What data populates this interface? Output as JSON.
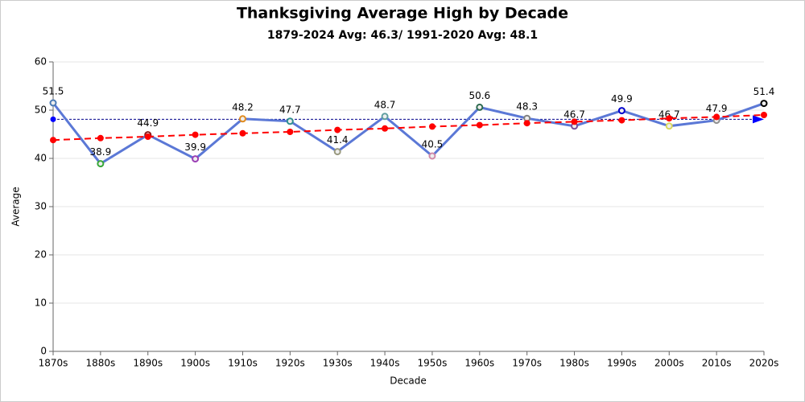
{
  "chart_data": {
    "type": "line",
    "title": "Thanksgiving Average High by Decade",
    "subtitle": "1879-2024 Avg: 46.3/ 1991-2020 Avg: 48.1",
    "x_label": "Decade",
    "y_label": "Average",
    "categories": [
      "1870s",
      "1880s",
      "1890s",
      "1900s",
      "1910s",
      "1920s",
      "1930s",
      "1940s",
      "1950s",
      "1960s",
      "1970s",
      "1980s",
      "1990s",
      "2000s",
      "2010s",
      "2020s"
    ],
    "series": [
      {
        "color": "#5b78d6",
        "values": [
          51.5,
          38.9,
          44.9,
          39.9,
          48.2,
          47.7,
          41.4,
          48.7,
          40.5,
          50.6,
          48.3,
          46.7,
          49.9,
          46.7,
          47.9,
          51.4
        ],
        "marker_colors": [
          "#4a7ab5",
          "#3aa83a",
          "#8b1a1a",
          "#9b3fb5",
          "#e08a1e",
          "#2f8f8f",
          "#9a9a80",
          "#5f9ea0",
          "#d08aa8",
          "#2e6b4f",
          "#808080",
          "#7a4f9a",
          "#0000cd",
          "#d8d860",
          "#909090",
          "#000000"
        ],
        "data_labels": true
      },
      {
        "color": "#ff0000",
        "dashed": true,
        "values": [
          43.8,
          44.2,
          44.5,
          44.9,
          45.2,
          45.5,
          45.9,
          46.2,
          46.6,
          46.9,
          47.3,
          47.6,
          47.9,
          48.3,
          48.6,
          49.0
        ]
      }
    ],
    "reference_line": {
      "value": 48.1,
      "color": "#00008b"
    },
    "ylim": [
      0,
      60
    ],
    "yticks": [
      0,
      10,
      20,
      30,
      40,
      50,
      60
    ],
    "grid": true
  }
}
